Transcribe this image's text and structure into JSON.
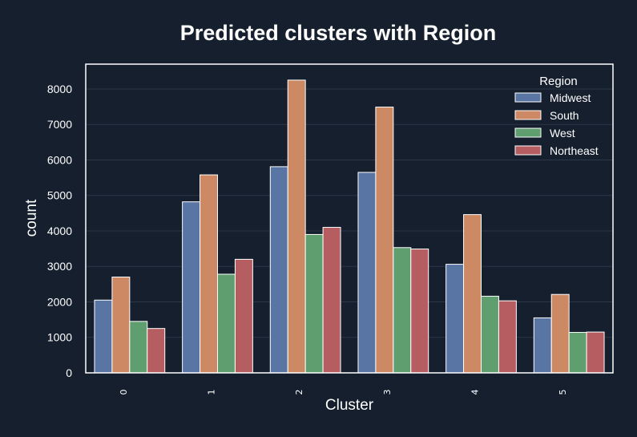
{
  "chart_data": {
    "type": "bar",
    "title": "Predicted clusters with Region",
    "xlabel": "Cluster",
    "ylabel": "count",
    "categories": [
      "0",
      "1",
      "2",
      "3",
      "4",
      "5"
    ],
    "series": [
      {
        "name": "Midwest",
        "color": "#5975a4",
        "values": [
          2050,
          4820,
          5810,
          5650,
          3060,
          1550
        ]
      },
      {
        "name": "South",
        "color": "#cc8963",
        "values": [
          2700,
          5580,
          8250,
          7490,
          4460,
          2210
        ]
      },
      {
        "name": "West",
        "color": "#5f9e6e",
        "values": [
          1450,
          2780,
          3900,
          3530,
          2160,
          1140
        ]
      },
      {
        "name": "Northeast",
        "color": "#b55d60",
        "values": [
          1250,
          3200,
          4100,
          3490,
          2030,
          1150
        ]
      }
    ],
    "ylim": [
      0,
      8700
    ],
    "yticks": [
      0,
      1000,
      2000,
      3000,
      4000,
      5000,
      6000,
      7000,
      8000
    ],
    "grid": true,
    "legend": {
      "title": "Region",
      "placement": "top-right"
    }
  }
}
